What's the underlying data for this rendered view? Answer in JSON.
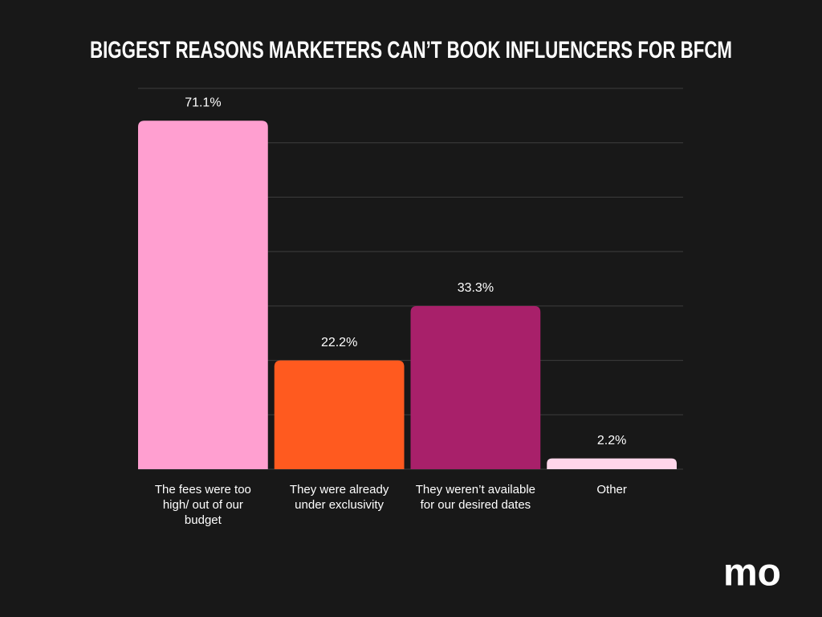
{
  "chart_data": {
    "type": "bar",
    "title": "BIGGEST REASONS MARKETERS CAN’T BOOK INFLUENCERS FOR BFCM",
    "categories": [
      "The fees were too high/ out of our budget",
      "They were already under exclusivity",
      "They weren’t available for our desired dates",
      "Other"
    ],
    "values": [
      71.1,
      22.2,
      33.3,
      2.2
    ],
    "value_labels": [
      "71.1%",
      "22.2%",
      "33.3%",
      "2.2%"
    ],
    "colors": [
      "#ff9fd0",
      "#ff5a1f",
      "#a8206a",
      "#ffd6ea"
    ],
    "ylim": [
      0,
      77.7
    ],
    "yticks": [
      0,
      11.1,
      22.2,
      33.3,
      44.4,
      55.5,
      66.6,
      77.7
    ],
    "grid": true
  },
  "logo": "mo"
}
